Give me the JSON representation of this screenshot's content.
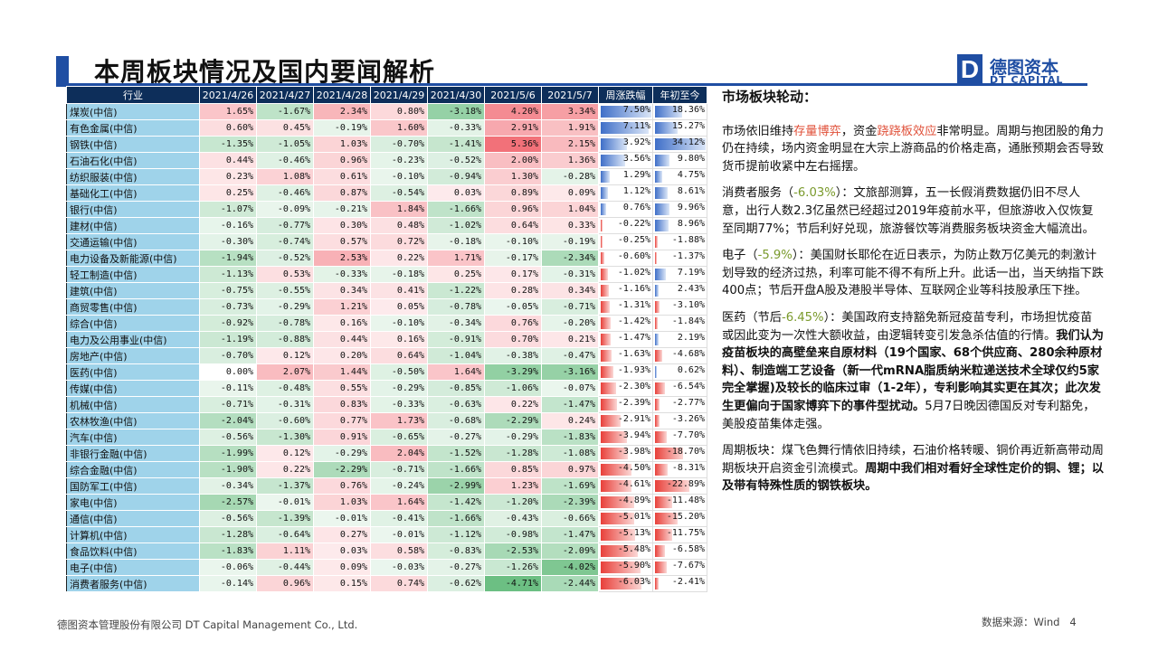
{
  "title": "本周板块情况及国内要闻解析",
  "logo": {
    "mark": "D",
    "cn": "德图资本",
    "en": "DT CAPITAL"
  },
  "table": {
    "headers": [
      "行业",
      "2021/4/26",
      "2021/4/27",
      "2021/4/28",
      "2021/4/29",
      "2021/4/30",
      "2021/5/6",
      "2021/5/7",
      "周涨跌幅",
      "年初至今"
    ],
    "rows": [
      {
        "name": "煤炭(中信)",
        "v": [
          "1.65%",
          "-1.67%",
          "2.34%",
          "0.80%",
          "-3.18%",
          "4.20%",
          "3.34%"
        ],
        "week": "7.50%",
        "ytd": "18.36%"
      },
      {
        "name": "有色金属(中信)",
        "v": [
          "0.60%",
          "0.45%",
          "-0.19%",
          "1.60%",
          "-0.33%",
          "2.91%",
          "1.91%"
        ],
        "week": "7.11%",
        "ytd": "15.27%"
      },
      {
        "name": "钢铁(中信)",
        "v": [
          "-1.35%",
          "-1.05%",
          "1.03%",
          "-0.70%",
          "-1.41%",
          "5.36%",
          "2.15%"
        ],
        "week": "3.92%",
        "ytd": "34.12%"
      },
      {
        "name": "石油石化(中信)",
        "v": [
          "0.44%",
          "-0.46%",
          "0.96%",
          "-0.23%",
          "-0.52%",
          "2.00%",
          "1.36%"
        ],
        "week": "3.56%",
        "ytd": "9.80%"
      },
      {
        "name": "纺织服装(中信)",
        "v": [
          "0.23%",
          "1.08%",
          "0.61%",
          "-0.10%",
          "-0.94%",
          "1.30%",
          "-0.28%"
        ],
        "week": "1.29%",
        "ytd": "4.75%"
      },
      {
        "name": "基础化工(中信)",
        "v": [
          "0.25%",
          "-0.46%",
          "0.87%",
          "-0.54%",
          "0.03%",
          "0.89%",
          "0.09%"
        ],
        "week": "1.12%",
        "ytd": "8.61%"
      },
      {
        "name": "银行(中信)",
        "v": [
          "-1.07%",
          "-0.09%",
          "-0.21%",
          "1.84%",
          "-1.66%",
          "0.96%",
          "1.04%"
        ],
        "week": "0.76%",
        "ytd": "9.96%"
      },
      {
        "name": "建材(中信)",
        "v": [
          "-0.16%",
          "-0.77%",
          "0.30%",
          "0.48%",
          "-1.02%",
          "0.64%",
          "0.33%"
        ],
        "week": "-0.22%",
        "ytd": "8.96%"
      },
      {
        "name": "交通运输(中信)",
        "v": [
          "-0.30%",
          "-0.74%",
          "0.57%",
          "0.72%",
          "-0.18%",
          "-0.10%",
          "-0.19%"
        ],
        "week": "-0.25%",
        "ytd": "-1.88%"
      },
      {
        "name": "电力设备及新能源(中信)",
        "v": [
          "-1.94%",
          "-0.52%",
          "2.53%",
          "0.22%",
          "1.71%",
          "-0.17%",
          "-2.34%"
        ],
        "week": "-0.60%",
        "ytd": "-1.37%"
      },
      {
        "name": "轻工制造(中信)",
        "v": [
          "-1.13%",
          "0.53%",
          "-0.33%",
          "-0.18%",
          "0.25%",
          "0.17%",
          "-0.31%"
        ],
        "week": "-1.02%",
        "ytd": "7.19%"
      },
      {
        "name": "建筑(中信)",
        "v": [
          "-0.75%",
          "-0.55%",
          "0.34%",
          "0.41%",
          "-1.22%",
          "0.28%",
          "0.34%"
        ],
        "week": "-1.16%",
        "ytd": "2.43%"
      },
      {
        "name": "商贸零售(中信)",
        "v": [
          "-0.73%",
          "-0.29%",
          "1.21%",
          "0.05%",
          "-0.78%",
          "-0.05%",
          "-0.71%"
        ],
        "week": "-1.31%",
        "ytd": "-3.10%"
      },
      {
        "name": "综合(中信)",
        "v": [
          "-0.92%",
          "-0.78%",
          "0.16%",
          "-0.10%",
          "-0.34%",
          "0.76%",
          "-0.20%"
        ],
        "week": "-1.42%",
        "ytd": "-1.84%"
      },
      {
        "name": "电力及公用事业(中信)",
        "v": [
          "-1.19%",
          "-0.88%",
          "0.44%",
          "0.16%",
          "-0.91%",
          "0.70%",
          "0.21%"
        ],
        "week": "-1.47%",
        "ytd": "2.19%"
      },
      {
        "name": "房地产(中信)",
        "v": [
          "-0.70%",
          "0.12%",
          "0.20%",
          "0.64%",
          "-1.04%",
          "-0.38%",
          "-0.47%"
        ],
        "week": "-1.63%",
        "ytd": "-4.68%"
      },
      {
        "name": "医药(中信)",
        "v": [
          "0.00%",
          "2.07%",
          "1.44%",
          "-0.50%",
          "1.64%",
          "-3.29%",
          "-3.16%"
        ],
        "week": "-1.93%",
        "ytd": "0.62%"
      },
      {
        "name": "传媒(中信)",
        "v": [
          "-0.11%",
          "-0.48%",
          "0.55%",
          "-0.29%",
          "-0.85%",
          "-1.06%",
          "-0.07%"
        ],
        "week": "-2.30%",
        "ytd": "-6.54%"
      },
      {
        "name": "机械(中信)",
        "v": [
          "-0.71%",
          "-0.31%",
          "0.83%",
          "-0.33%",
          "-0.63%",
          "0.22%",
          "-1.47%"
        ],
        "week": "-2.39%",
        "ytd": "-2.77%"
      },
      {
        "name": "农林牧渔(中信)",
        "v": [
          "-2.04%",
          "-0.60%",
          "0.77%",
          "1.73%",
          "-0.68%",
          "-2.29%",
          "0.24%"
        ],
        "week": "-2.91%",
        "ytd": "-3.26%"
      },
      {
        "name": "汽车(中信)",
        "v": [
          "-0.56%",
          "-1.30%",
          "0.91%",
          "-0.65%",
          "-0.27%",
          "-0.29%",
          "-1.83%"
        ],
        "week": "-3.94%",
        "ytd": "-7.70%"
      },
      {
        "name": "非银行金融(中信)",
        "v": [
          "-1.99%",
          "0.12%",
          "-0.29%",
          "2.04%",
          "-1.52%",
          "-1.28%",
          "-1.08%"
        ],
        "week": "-3.98%",
        "ytd": "-18.70%"
      },
      {
        "name": "综合金融(中信)",
        "v": [
          "-1.90%",
          "0.22%",
          "-2.29%",
          "-0.71%",
          "-1.66%",
          "0.85%",
          "0.97%"
        ],
        "week": "-4.50%",
        "ytd": "-8.31%"
      },
      {
        "name": "国防军工(中信)",
        "v": [
          "-0.34%",
          "-1.37%",
          "0.76%",
          "-0.24%",
          "-2.99%",
          "1.23%",
          "-1.69%"
        ],
        "week": "-4.61%",
        "ytd": "-22.89%"
      },
      {
        "name": "家电(中信)",
        "v": [
          "-2.57%",
          "-0.01%",
          "1.03%",
          "1.64%",
          "-1.42%",
          "-1.20%",
          "-2.39%"
        ],
        "week": "-4.89%",
        "ytd": "-11.48%"
      },
      {
        "name": "通信(中信)",
        "v": [
          "-0.56%",
          "-1.39%",
          "-0.01%",
          "-0.41%",
          "-1.66%",
          "-0.43%",
          "-0.66%"
        ],
        "week": "-5.01%",
        "ytd": "-15.20%"
      },
      {
        "name": "计算机(中信)",
        "v": [
          "-1.28%",
          "-0.64%",
          "0.27%",
          "-0.01%",
          "-1.12%",
          "-0.98%",
          "-1.47%"
        ],
        "week": "-5.13%",
        "ytd": "-11.75%"
      },
      {
        "name": "食品饮料(中信)",
        "v": [
          "-1.83%",
          "1.11%",
          "0.03%",
          "0.58%",
          "-0.83%",
          "-2.53%",
          "-2.09%"
        ],
        "week": "-5.48%",
        "ytd": "-6.58%"
      },
      {
        "name": "电子(中信)",
        "v": [
          "-0.06%",
          "-0.44%",
          "0.09%",
          "-0.03%",
          "-0.27%",
          "-1.26%",
          "-4.02%"
        ],
        "week": "-5.90%",
        "ytd": "-7.67%"
      },
      {
        "name": "消费者服务(中信)",
        "v": [
          "-0.14%",
          "0.96%",
          "0.15%",
          "0.74%",
          "-0.62%",
          "-4.71%",
          "-2.44%"
        ],
        "week": "-6.03%",
        "ytd": "-2.41%"
      }
    ]
  },
  "text": {
    "heading": "市场板块轮动：",
    "p1": [
      {
        "t": "市场依旧维持",
        "c": ""
      },
      {
        "t": "存量博弈",
        "c": "red"
      },
      {
        "t": "，资金",
        "c": ""
      },
      {
        "t": "跷跷板效应",
        "c": "red"
      },
      {
        "t": "非常明显。周期与抱团股的角力仍在持续，场内资金明显在大宗上游商品的价格走高，通胀预期会否导致货币提前收紧中左右摇摆。",
        "c": ""
      }
    ],
    "p2": [
      {
        "t": "消费者服务（",
        "c": ""
      },
      {
        "t": "-6.03%",
        "c": "grn"
      },
      {
        "t": "）：文旅部测算，五一长假消费数据仍旧不尽人意，出行人数2.3亿虽然已经超过2019年疫前水平，但旅游收入仅恢复至同期77%；节后利好兑现，旅游餐饮等消费服务板块资金大幅流出。",
        "c": ""
      }
    ],
    "p3": [
      {
        "t": "电子（",
        "c": ""
      },
      {
        "t": "-5.9%",
        "c": "grn"
      },
      {
        "t": "）：美国财长耶伦在近日表示，为防止数万亿美元的刺激计划导致的经济过热，利率可能不得不有所上升。此话一出，当天纳指下跌400点；节后开盘A股及港股半导体、互联网企业等科技股承压下挫。",
        "c": ""
      }
    ],
    "p4": [
      {
        "t": "医药（节后",
        "c": ""
      },
      {
        "t": "-6.45%",
        "c": "grn"
      },
      {
        "t": "）：美国政府支持豁免新冠疫苗专利，市场担忧疫苗或因此变为一次性大额收益，由逻辑转变引发急杀估值的行情。",
        "c": ""
      },
      {
        "t": "我们认为疫苗板块的高壁垒来自原材料（19个国家、68个供应商、280余种原材料）、制造端工艺设备（新一代mRNA脂质纳米粒递送技术全球仅约5家完全掌握)及较长的临床过审（1-2年），专利影响其实更在其次；此次发生更偏向于国家博弈下的事件型扰动。",
        "c": "bold"
      },
      {
        "t": "5月7日晚因德国反对专利豁免，美股疫苗集体走强。",
        "c": ""
      }
    ],
    "p5": [
      {
        "t": "周期板块：煤飞色舞行情依旧持续，石油价格转暖、铜价再近新高带动周期板块开启资金引流模式。",
        "c": ""
      },
      {
        "t": "周期中我们相对看好全球性定价的铜、锂；以及带有特殊性质的钢铁板块。",
        "c": "bold"
      }
    ]
  },
  "footer": {
    "company": "德图资本管理股份有限公司 DT Capital Management Co., Ltd.",
    "source": "数据来源：Wind",
    "page": "4"
  },
  "colors": {
    "pos": "#f0646a",
    "neg": "#3fae59",
    "week_pos": "#3f6fc8",
    "week_neg": "#e8403a"
  }
}
